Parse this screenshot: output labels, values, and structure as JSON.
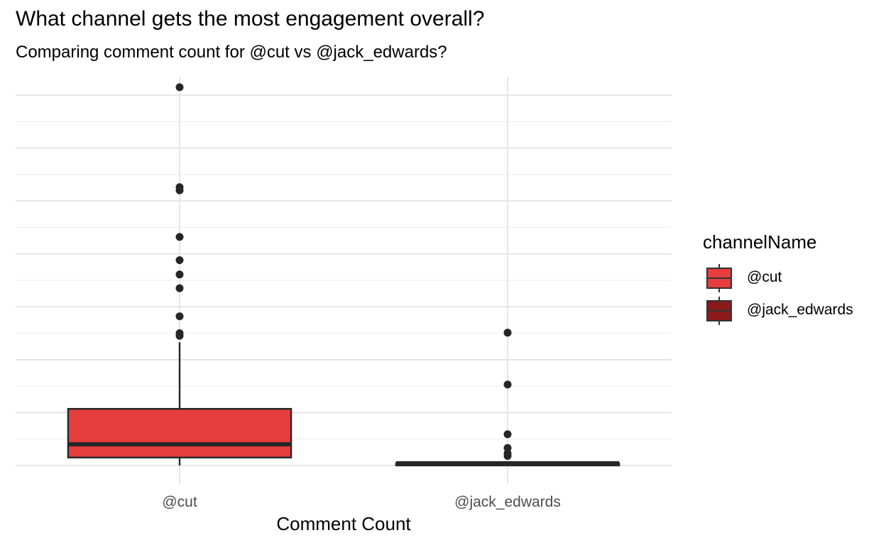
{
  "title": "What channel gets the most engagement overall?",
  "subtitle": "Comparing comment count for @cut vs @jack_edwards?",
  "legend": {
    "title": "channelName",
    "items": [
      {
        "label": "@cut",
        "color": "#E63D3F"
      },
      {
        "label": "@jack_edwards",
        "color": "#8B1A1A"
      }
    ]
  },
  "chart_data": {
    "type": "boxplot",
    "xlabel": "Comment Count",
    "ylabel": "",
    "ylim": [
      -3.5,
      73.5
    ],
    "y_ticks_labeled": false,
    "grid": true,
    "legend_position": "right",
    "categories": [
      "@cut",
      "@jack_edwards"
    ],
    "series": [
      {
        "name": "@cut",
        "color": "#E63D3F",
        "stats": {
          "min": 0,
          "q1": 1.5,
          "median": 4.0,
          "q3": 10.7,
          "max": 23.3
        },
        "outliers": [
          24.5,
          25.0,
          28.2,
          33.5,
          36.1,
          38.8,
          43.2,
          52.0,
          52.6,
          71.5
        ]
      },
      {
        "name": "@jack_edwards",
        "color": "#8B1A1A",
        "stats": {
          "min": 0,
          "q1": 0,
          "median": 0.4,
          "q3": 0.4,
          "max": 0.4
        },
        "outliers": [
          1.8,
          2.3,
          3.3,
          5.9,
          15.3,
          25.1
        ]
      }
    ]
  }
}
